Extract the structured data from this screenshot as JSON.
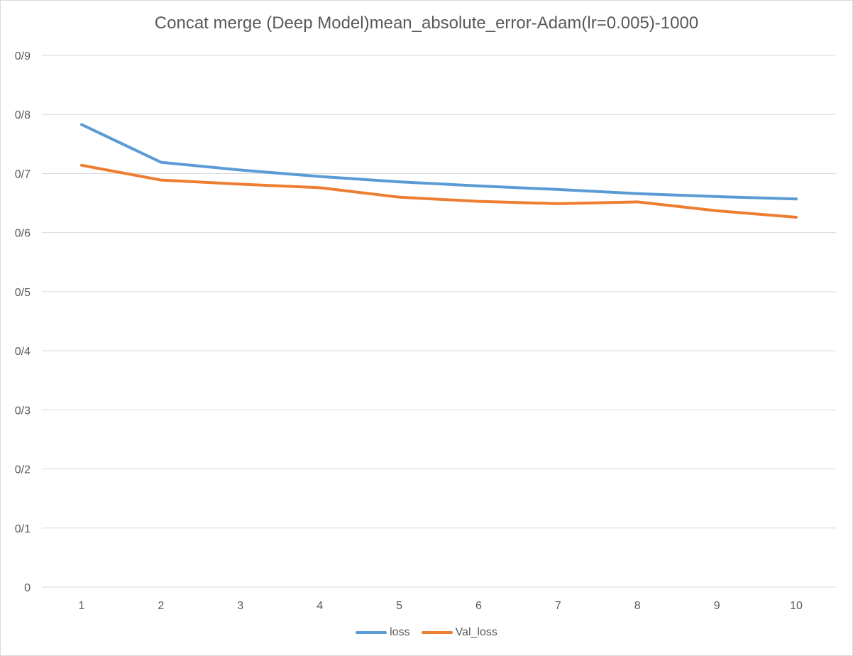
{
  "chart_data": {
    "type": "line",
    "title": "Concat merge (Deep Model)mean_absolute_error-Adam(lr=0.005)-1000",
    "xlabel": "",
    "ylabel": "",
    "categories": [
      "1",
      "2",
      "3",
      "4",
      "5",
      "6",
      "7",
      "8",
      "9",
      "10"
    ],
    "y_tick_labels": [
      "0",
      "0/1",
      "0/2",
      "0/3",
      "0/4",
      "0/5",
      "0/6",
      "0/7",
      "0/8",
      "0/9"
    ],
    "ylim": [
      0,
      0.9
    ],
    "grid": true,
    "legend_position": "bottom",
    "series": [
      {
        "name": "loss",
        "color": "#5b9bd5",
        "values": [
          0.783,
          0.719,
          0.706,
          0.695,
          0.686,
          0.679,
          0.673,
          0.666,
          0.661,
          0.657
        ]
      },
      {
        "name": "Val_loss",
        "color": "#ed7d31",
        "values": [
          0.714,
          0.689,
          0.682,
          0.676,
          0.66,
          0.653,
          0.649,
          0.652,
          0.637,
          0.626
        ]
      }
    ]
  }
}
